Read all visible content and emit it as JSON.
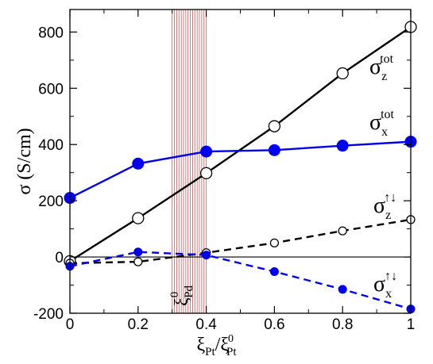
{
  "chart_data": {
    "type": "line",
    "xlabel": {
      "base": "ξ",
      "base_sub": "Pt",
      "slash": "/",
      "ref": "ξ",
      "ref_sub": "Pt",
      "ref_sup": "0"
    },
    "ylabel": "σ (S/cm)",
    "xlim": [
      0,
      1
    ],
    "ylim": [
      -200,
      880
    ],
    "xticks": [
      0,
      0.2,
      0.4,
      0.6,
      0.8,
      1
    ],
    "xtick_labels": [
      "0",
      "0.2",
      "0.4",
      "0.6",
      "0.8",
      "1"
    ],
    "yticks": [
      -200,
      0,
      200,
      400,
      600,
      800
    ],
    "ytick_labels": [
      "-200",
      "0",
      "200",
      "400",
      "600",
      "800"
    ],
    "grid": false,
    "series": [
      {
        "name": "σ_z^tot",
        "label": {
          "base": "σ",
          "sub": "z",
          "sup": "tot"
        },
        "x": [
          0,
          0.2,
          0.4,
          0.6,
          0.8,
          1.0
        ],
        "y": [
          -15,
          138,
          298,
          465,
          653,
          818
        ],
        "color": "#000000",
        "marker": "open-circle",
        "line": "solid",
        "marker_size": "large"
      },
      {
        "name": "σ_x^tot",
        "label": {
          "base": "σ",
          "sub": "x",
          "sup": "tot"
        },
        "x": [
          0,
          0.2,
          0.4,
          0.6,
          0.8,
          1.0
        ],
        "y": [
          210,
          332,
          375,
          380,
          396,
          410
        ],
        "color": "#0000ee",
        "marker": "filled-circle",
        "line": "solid",
        "marker_size": "large"
      },
      {
        "name": "σ_z^↑↓",
        "label": {
          "base": "σ",
          "sub": "z",
          "sup": "↑↓"
        },
        "x": [
          0,
          0.2,
          0.4,
          0.6,
          0.8,
          1.0
        ],
        "y": [
          -22,
          -17,
          15,
          50,
          93,
          133
        ],
        "color": "#000000",
        "marker": "open-circle",
        "line": "dashed",
        "marker_size": "small"
      },
      {
        "name": "σ_x^↑↓",
        "label": {
          "base": "σ",
          "sub": "x",
          "sup": "↑↓"
        },
        "x": [
          0,
          0.2,
          0.4,
          0.6,
          0.8,
          1.0
        ],
        "y": [
          -33,
          18,
          7,
          -52,
          -115,
          -185
        ],
        "color": "#0000ee",
        "marker": "filled-circle",
        "line": "dashed",
        "marker_size": "small"
      }
    ],
    "annotations": [
      {
        "type": "shaded-band",
        "x_range": [
          0.3,
          0.4
        ],
        "color": "#a52a2a",
        "pattern": "vertical-lines"
      },
      {
        "type": "label",
        "text": {
          "base": "ξ",
          "sub": "Pd",
          "sup": "0"
        },
        "rotation": "vertical",
        "color": "#000000"
      },
      {
        "type": "hline",
        "y": 0,
        "color": "#000000"
      }
    ]
  }
}
